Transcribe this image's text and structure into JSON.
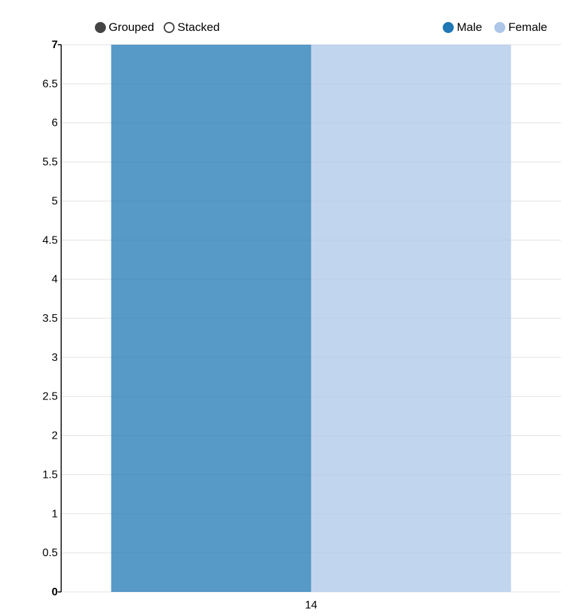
{
  "controls": {
    "grouped_label": "Grouped",
    "stacked_label": "Stacked",
    "selected": "grouped"
  },
  "legend": {
    "items": [
      {
        "label": "Male",
        "color": "#1f77b4"
      },
      {
        "label": "Female",
        "color": "#aec7e8"
      }
    ]
  },
  "chart_data": {
    "type": "bar",
    "mode": "grouped",
    "categories": [
      "14"
    ],
    "series": [
      {
        "name": "Male",
        "values": [
          7
        ],
        "color": "#1f77b4"
      },
      {
        "name": "Female",
        "values": [
          7
        ],
        "color": "#aec7e8"
      }
    ],
    "title": "",
    "xlabel": "",
    "ylabel": "",
    "ylim": [
      0,
      7
    ],
    "yticks": [
      0,
      0.5,
      1,
      1.5,
      2,
      2.5,
      3,
      3.5,
      4,
      4.5,
      5,
      5.5,
      6,
      6.5,
      7
    ],
    "grid": true,
    "legend_position": "top-right"
  }
}
